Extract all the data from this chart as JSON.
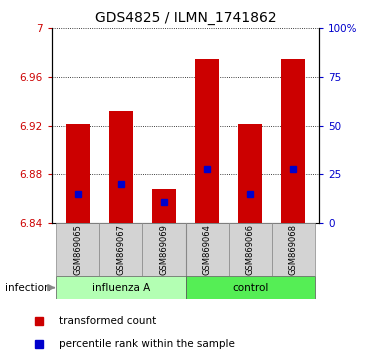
{
  "title": "GDS4825 / ILMN_1741862",
  "samples": [
    "GSM869065",
    "GSM869067",
    "GSM869069",
    "GSM869064",
    "GSM869066",
    "GSM869068"
  ],
  "bar_bottom": 6.84,
  "bar_tops": [
    6.921,
    6.932,
    6.868,
    6.975,
    6.921,
    6.975
  ],
  "percentile_values": [
    6.864,
    6.872,
    6.857,
    6.884,
    6.864,
    6.884
  ],
  "ylim_min": 6.84,
  "ylim_max": 7.0,
  "yticks_left": [
    6.84,
    6.88,
    6.92,
    6.96,
    7.0
  ],
  "ytick_labels_left": [
    "6.84",
    "6.88",
    "6.92",
    "6.96",
    "7"
  ],
  "yticks_right_pct": [
    0,
    25,
    50,
    75,
    100
  ],
  "ytick_labels_right": [
    "0",
    "25",
    "50",
    "75",
    "100%"
  ],
  "bar_color": "#cc0000",
  "percentile_color": "#0000cc",
  "influenza_color": "#b3ffb3",
  "control_color": "#55ee55",
  "sample_box_color": "#d3d3d3",
  "legend_bar_label": "transformed count",
  "legend_pct_label": "percentile rank within the sample",
  "title_fontsize": 10,
  "tick_fontsize": 7.5,
  "left_tick_color": "#cc0000",
  "right_tick_color": "#0000cc"
}
